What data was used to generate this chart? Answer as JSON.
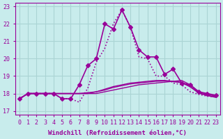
{
  "xlabel": "Windchill (Refroidissement éolien,°C)",
  "ylabel": "",
  "bg_color": "#c8ecec",
  "grid_color": "#aad4d4",
  "line_color": "#990099",
  "xlim": [
    -0.5,
    23.5
  ],
  "ylim": [
    16.8,
    23.2
  ],
  "xticks": [
    0,
    1,
    2,
    3,
    4,
    5,
    6,
    7,
    8,
    9,
    10,
    11,
    12,
    13,
    14,
    15,
    16,
    17,
    18,
    19,
    20,
    21,
    22,
    23
  ],
  "yticks": [
    17,
    18,
    19,
    20,
    21,
    22,
    23
  ],
  "series": [
    {
      "x": [
        0,
        1,
        2,
        3,
        4,
        5,
        6,
        7,
        8,
        9,
        10,
        11,
        12,
        13,
        14,
        15,
        16,
        17,
        18,
        19,
        20,
        21,
        22,
        23
      ],
      "y": [
        17.7,
        18.0,
        18.0,
        18.0,
        18.0,
        17.7,
        17.7,
        18.5,
        19.6,
        20.0,
        22.0,
        21.7,
        22.8,
        21.8,
        20.5,
        20.1,
        20.1,
        19.1,
        19.4,
        18.6,
        18.5,
        18.1,
        18.0,
        17.9
      ],
      "style": "-",
      "marker": "D",
      "markersize": 3,
      "linewidth": 1.2
    },
    {
      "x": [
        0,
        1,
        2,
        3,
        4,
        5,
        6,
        7,
        8,
        9,
        10,
        11,
        12,
        13,
        14,
        15,
        16,
        17,
        18,
        19,
        20,
        21,
        22,
        23
      ],
      "y": [
        17.7,
        18.0,
        18.0,
        18.0,
        18.0,
        17.7,
        17.7,
        17.5,
        18.3,
        19.8,
        20.6,
        22.0,
        22.8,
        21.8,
        20.1,
        20.0,
        19.0,
        19.0,
        18.6,
        18.5,
        18.1,
        17.95,
        17.85,
        17.8
      ],
      "style": ":",
      "marker": null,
      "markersize": 0,
      "linewidth": 1.2
    },
    {
      "x": [
        0,
        1,
        2,
        3,
        4,
        5,
        6,
        7,
        8,
        9,
        10,
        11,
        12,
        13,
        14,
        15,
        16,
        17,
        18,
        19,
        20,
        21,
        22,
        23
      ],
      "y": [
        17.7,
        18.0,
        18.0,
        18.0,
        18.0,
        18.0,
        18.0,
        18.0,
        18.0,
        18.0,
        18.1,
        18.2,
        18.3,
        18.4,
        18.5,
        18.55,
        18.6,
        18.65,
        18.7,
        18.75,
        18.5,
        18.1,
        17.95,
        17.85
      ],
      "style": "-",
      "marker": null,
      "markersize": 0,
      "linewidth": 1.0
    },
    {
      "x": [
        0,
        1,
        2,
        3,
        4,
        5,
        6,
        7,
        8,
        9,
        10,
        11,
        12,
        13,
        14,
        15,
        16,
        17,
        18,
        19,
        20,
        21,
        22,
        23
      ],
      "y": [
        17.7,
        18.0,
        18.0,
        18.0,
        18.0,
        18.0,
        18.0,
        18.0,
        18.0,
        18.1,
        18.25,
        18.4,
        18.5,
        18.6,
        18.65,
        18.7,
        18.75,
        18.75,
        18.7,
        18.65,
        18.4,
        18.05,
        17.9,
        17.8
      ],
      "style": "-",
      "marker": null,
      "markersize": 0,
      "linewidth": 1.0
    },
    {
      "x": [
        0,
        1,
        2,
        3,
        4,
        5,
        6,
        7,
        8,
        9,
        10,
        11,
        12,
        13,
        14,
        15,
        16,
        17,
        18,
        19,
        20,
        21,
        22,
        23
      ],
      "y": [
        17.7,
        18.0,
        18.0,
        18.0,
        18.0,
        18.0,
        18.0,
        18.0,
        18.05,
        18.1,
        18.2,
        18.35,
        18.45,
        18.55,
        18.6,
        18.65,
        18.7,
        18.72,
        18.68,
        18.62,
        18.38,
        18.02,
        17.88,
        17.78
      ],
      "style": "-",
      "marker": null,
      "markersize": 0,
      "linewidth": 1.0
    }
  ],
  "tick_fontsize": 6,
  "label_fontsize": 6.5
}
